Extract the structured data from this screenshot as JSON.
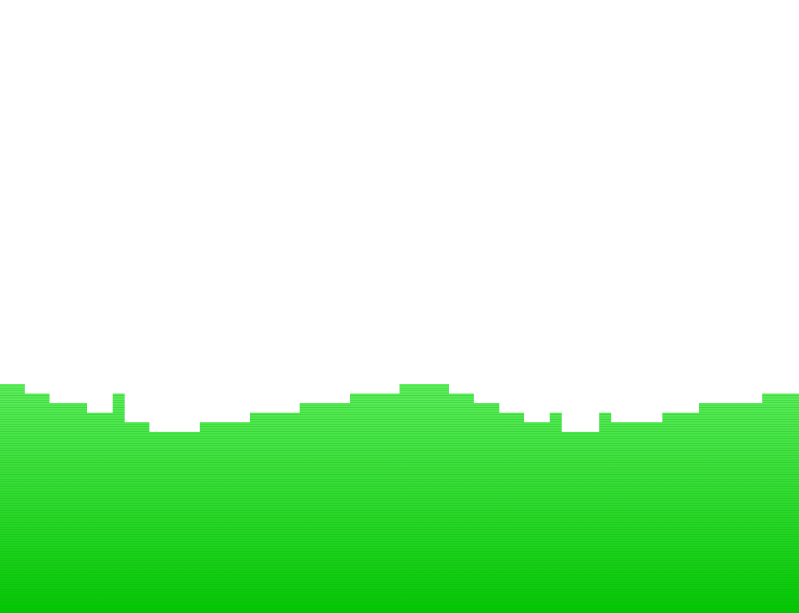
{
  "scene": {
    "sky_color": "#ffffff",
    "ground_color_top": "#5ef05e",
    "ground_color_bottom": "#00c800",
    "scanline_color": "#1fa81f"
  }
}
